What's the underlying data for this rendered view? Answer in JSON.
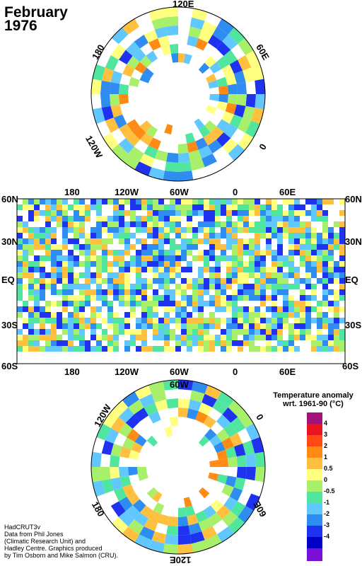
{
  "title": {
    "month": "February",
    "year": "1976"
  },
  "north_labels": {
    "top": "120E",
    "left": "180",
    "right": "60E",
    "bottom_left": "120W",
    "bottom_right": "0"
  },
  "map_labels": {
    "lat": [
      "60N",
      "30N",
      "EQ",
      "30S",
      "60S"
    ],
    "lon": [
      "180",
      "120W",
      "60W",
      "0",
      "60E"
    ]
  },
  "south_labels": {
    "top_left": "120W",
    "top": "60W",
    "right_top": "0",
    "left": "180",
    "right_bottom": "60E",
    "bottom": "120E"
  },
  "legend": {
    "title_line1": "Temperature anomaly",
    "title_line2": "wrt. 1961-90  (°C)",
    "ticks": [
      "4",
      "3",
      "2",
      "1",
      "0.5",
      "0",
      "-0.5",
      "-1",
      "-2",
      "-3",
      "-4"
    ],
    "colors": [
      "#a0137a",
      "#e8141e",
      "#ff4a14",
      "#ff8a14",
      "#ffc040",
      "#ffff80",
      "#a8f06a",
      "#50e6a0",
      "#60c8ff",
      "#2f8cf0",
      "#1e32f0",
      "#0000c8",
      "#7a10d8"
    ]
  },
  "credits": {
    "line1": "HadCRUT3v",
    "line2": "Data from Phil Jones",
    "line3": "(Climatic Research Unit) and",
    "line4": "Hadley Centre.  Graphics produced",
    "line5": "by Tim Osborn and Mike Salmon (CRU)."
  }
}
